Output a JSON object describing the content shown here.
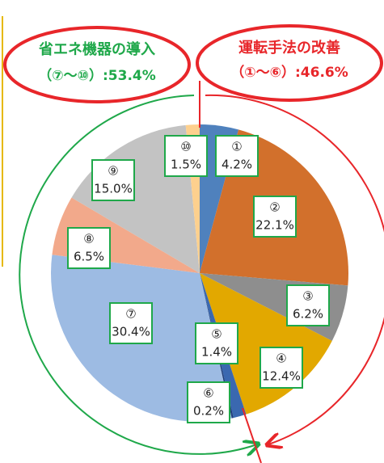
{
  "chart_data": {
    "type": "pie",
    "categories": [
      "①",
      "②",
      "③",
      "④",
      "⑤",
      "⑥",
      "⑦",
      "⑧",
      "⑨",
      "⑩"
    ],
    "values": [
      4.2,
      22.1,
      6.2,
      12.4,
      1.4,
      0.2,
      30.4,
      6.5,
      15.0,
      1.5
    ],
    "value_labels": [
      "4.2%",
      "22.1%",
      "6.2%",
      "12.4%",
      "1.4%",
      "0.2%",
      "30.4%",
      "6.5%",
      "15.0%",
      "1.5%"
    ],
    "colors": [
      "#4f81bd",
      "#d2702c",
      "#8e8e8e",
      "#e2a800",
      "#3a68b0",
      "#1f3f7a",
      "#9dbbe3",
      "#f2a98b",
      "#c3c3c3",
      "#fdd08e"
    ],
    "annotations": [
      {
        "title": "省エネ機器の導入",
        "text": "（⑦～⑩）:53.4%",
        "color": "#1fa84a"
      },
      {
        "title": "運転手法の改善",
        "text": "（①～⑥）:46.6%",
        "color": "#e8262a"
      }
    ]
  }
}
